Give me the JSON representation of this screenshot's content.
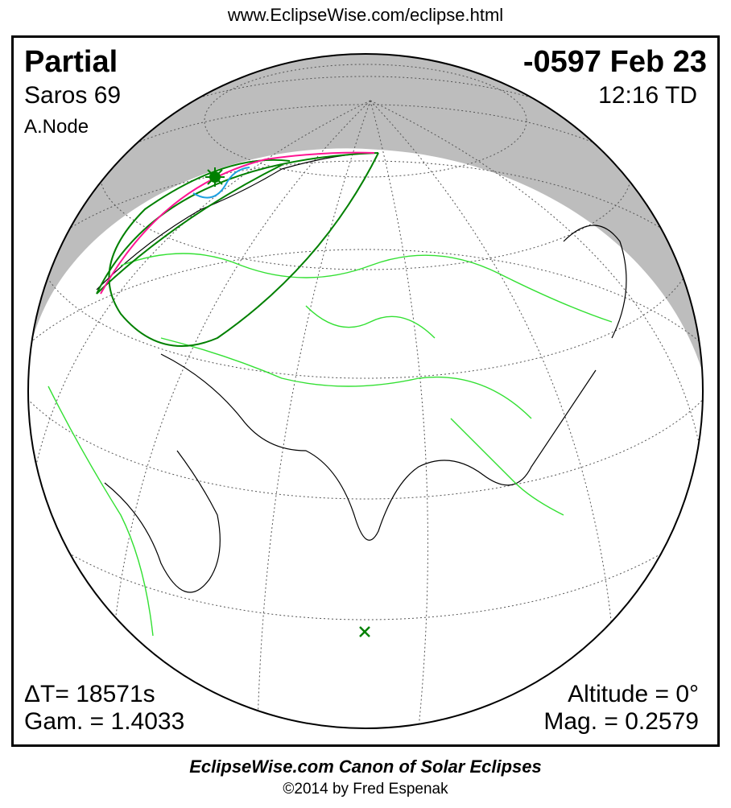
{
  "url": "www.EclipseWise.com/eclipse.html",
  "eclipse": {
    "type": "Partial",
    "date": "-0597 Feb 23",
    "saros": "Saros  69",
    "time": "12:16 TD",
    "node": "A.Node",
    "delta_t": "ΔT=  18571s",
    "gamma": "Gam. = 1.4033",
    "altitude": "Altitude =  0°",
    "magnitude": "Mag. = 0.2579"
  },
  "footer": {
    "canon": "EclipseWise.com Canon of Solar Eclipses",
    "copyright": "©2014 by Fred Espenak"
  },
  "colors": {
    "night": "#bdbdbd",
    "borders": "#33e033",
    "coast": "#000000",
    "penumbra_limits": "#008000",
    "sunrise_curve": "#ff1493",
    "max_curve": "#1ea0e0",
    "greatest_eclipse_marker": "#008000"
  }
}
